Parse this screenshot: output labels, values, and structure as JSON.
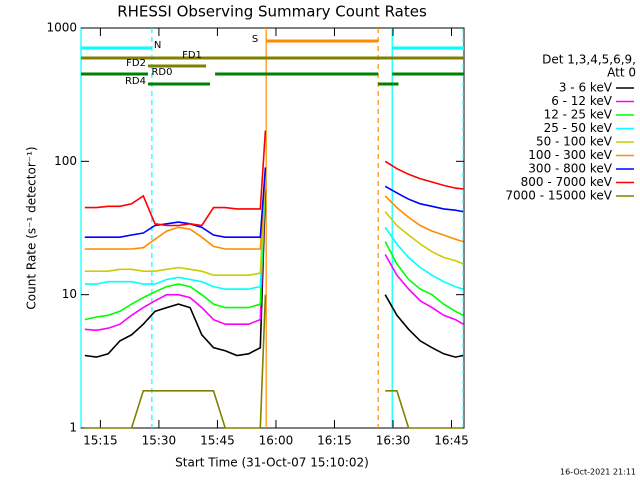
{
  "chart_data": {
    "type": "line",
    "title": "RHESSI Observing Summary Count Rates",
    "x_label": "Start Time (31-Oct-07 15:10:02)",
    "y_label": "Count Rate (s⁻¹ detector⁻¹)",
    "footer": "16-Oct-2021 21:11",
    "legend_title": [
      "Det 1,3,4,5,6,9,",
      "Att 0"
    ],
    "log_y": true,
    "xlim": [
      910.03,
      1008.2
    ],
    "xticks": [
      {
        "value": 915,
        "label": "15:15"
      },
      {
        "value": 930,
        "label": "15:30"
      },
      {
        "value": 945,
        "label": "15:45"
      },
      {
        "value": 960,
        "label": "16:00"
      },
      {
        "value": 975,
        "label": "16:15"
      },
      {
        "value": 990,
        "label": "16:30"
      },
      {
        "value": 1005,
        "label": "16:45"
      }
    ],
    "ylim": [
      1,
      1000
    ],
    "yticks": [
      1,
      10,
      100,
      1000
    ],
    "x": [
      911,
      914,
      917,
      920,
      923,
      926,
      929,
      932,
      935,
      938,
      941,
      944,
      947,
      950,
      953,
      956,
      957.3,
      970,
      988,
      991,
      994,
      997,
      1000,
      1003,
      1006,
      1008
    ],
    "series": [
      {
        "name": "3 - 6 keV",
        "color": "#000000",
        "values": [
          3.5,
          3.4,
          3.6,
          4.5,
          5,
          6,
          7.5,
          8,
          8.5,
          8,
          5,
          4,
          3.8,
          3.5,
          3.6,
          4,
          60,
          null,
          10,
          7,
          5.5,
          4.5,
          4,
          3.6,
          3.4,
          3.5
        ]
      },
      {
        "name": "6 - 12 keV",
        "color": "#ff00ff",
        "values": [
          5.5,
          5.4,
          5.6,
          6,
          7,
          8,
          9,
          10,
          10,
          9.5,
          8,
          6.5,
          6,
          6,
          6,
          6.5,
          70,
          null,
          20,
          14,
          11,
          9,
          8,
          7,
          6.5,
          6
        ]
      },
      {
        "name": "12 - 25 keV",
        "color": "#00ff00",
        "values": [
          6.5,
          6.8,
          7,
          7.5,
          8.5,
          9.5,
          10.5,
          11.5,
          12,
          11.5,
          10,
          8.5,
          8,
          8,
          8,
          8.5,
          75,
          null,
          25,
          17,
          13,
          11,
          10,
          8.5,
          7.5,
          7
        ]
      },
      {
        "name": "25 - 50 keV",
        "color": "#00ffff",
        "values": [
          12,
          12,
          12.5,
          12.5,
          12.5,
          12,
          12,
          13,
          13.5,
          13,
          12.5,
          11.5,
          11,
          11,
          11,
          11.5,
          80,
          null,
          32,
          24,
          19,
          16,
          14,
          12.5,
          11.5,
          11
        ]
      },
      {
        "name": "50 - 100 keV",
        "color": "#cccc00",
        "values": [
          15,
          15,
          15,
          15.5,
          15.5,
          15,
          15,
          15.5,
          16,
          15.5,
          15,
          14,
          14,
          14,
          14,
          14.5,
          80,
          null,
          42,
          33,
          28,
          24,
          21,
          19,
          18,
          17
        ]
      },
      {
        "name": "100 - 300 keV",
        "color": "#ff8c00",
        "values": [
          22,
          22,
          22,
          22,
          22,
          22.5,
          26,
          30,
          32,
          31,
          27,
          23,
          22,
          22,
          22,
          22,
          85,
          null,
          55,
          45,
          38,
          33,
          30,
          28,
          26,
          25
        ]
      },
      {
        "name": "300 - 800 keV",
        "color": "#0000ff",
        "values": [
          27,
          27,
          27,
          27,
          28,
          29,
          33,
          34,
          35,
          34,
          32,
          28,
          27,
          27,
          27,
          27,
          90,
          null,
          65,
          58,
          52,
          48,
          46,
          44,
          43,
          42
        ]
      },
      {
        "name": "800 - 7000 keV",
        "color": "#ff0000",
        "values": [
          45,
          45,
          46,
          46,
          48,
          55,
          34,
          33,
          33,
          34,
          33,
          45,
          45,
          44,
          44,
          44,
          170,
          null,
          100,
          88,
          80,
          74,
          70,
          66,
          63,
          62
        ]
      },
      {
        "name": "7000 - 15000 keV",
        "color": "#808000",
        "values": [
          1,
          1,
          1,
          1,
          1,
          1.9,
          1.9,
          1.9,
          1.9,
          1.9,
          1.9,
          1.9,
          1,
          1,
          1,
          1,
          10,
          null,
          1.9,
          1.9,
          1,
          1,
          1,
          1,
          1,
          1
        ]
      }
    ],
    "flags": [
      {
        "name": "S",
        "color": "#ff8c00",
        "intervals": [
          [
            957.5,
            986.2
          ]
        ]
      },
      {
        "name": "N",
        "color": "#00ffff",
        "intervals": [
          [
            910.03,
            928.2
          ],
          [
            989.8,
            1008.2
          ]
        ]
      },
      {
        "name": "FD1",
        "color": "#808000",
        "intervals": [
          [
            910.03,
            1008.2
          ]
        ]
      },
      {
        "name": "FD2",
        "color": "#808000",
        "intervals": [
          [
            927.2,
            942.1
          ]
        ]
      },
      {
        "name": "RD0",
        "color": "#008000",
        "intervals": [
          [
            910.03,
            927.2
          ],
          [
            944.4,
            986.2
          ],
          [
            989.8,
            1008.2
          ]
        ]
      },
      {
        "name": "RD4",
        "color": "#008000",
        "intervals": [
          [
            927.2,
            943.1
          ],
          [
            986.2,
            991.4
          ]
        ]
      }
    ],
    "markers": [
      {
        "x": 910.03,
        "color": "#00ffff",
        "dashed": false
      },
      {
        "x": 928.2,
        "color": "#00ffff",
        "dashed": true
      },
      {
        "x": 957.5,
        "color": "#ff8c00",
        "dashed": false
      },
      {
        "x": 986.2,
        "color": "#ff8c00",
        "dashed": true
      },
      {
        "x": 989.8,
        "color": "#00ffff",
        "dashed": false
      },
      {
        "x": 1008.0,
        "color": "#00ffff",
        "dashed": true
      }
    ]
  }
}
